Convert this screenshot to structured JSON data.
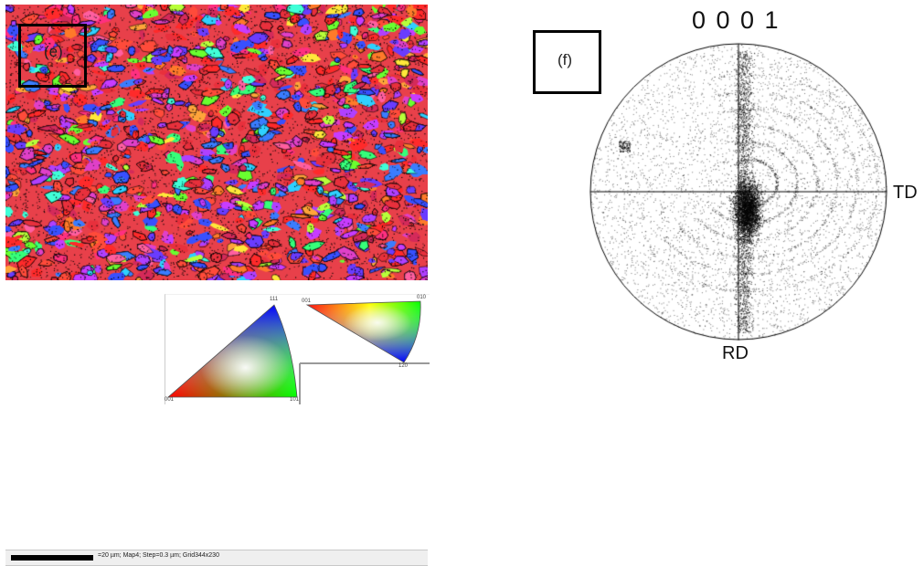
{
  "panel_e": {
    "label": "(e)",
    "scalebar_text": "=20 µm; Map4; Step=0.3 µm; Grid344x230"
  },
  "ipf_key": {
    "triangle_1": {
      "top_label": "111",
      "bottom_left_label": "001",
      "bottom_right_label": "101"
    },
    "triangle_2": {
      "top_left_label": "001",
      "top_right_label": "010",
      "bottom_label": "120"
    }
  },
  "panel_f": {
    "label": "(f)",
    "title": "0 0 0 1",
    "axis_right_label": "TD",
    "axis_bottom_label": "RD"
  },
  "colors": {
    "box_border": "#000000",
    "text": "#111111"
  }
}
